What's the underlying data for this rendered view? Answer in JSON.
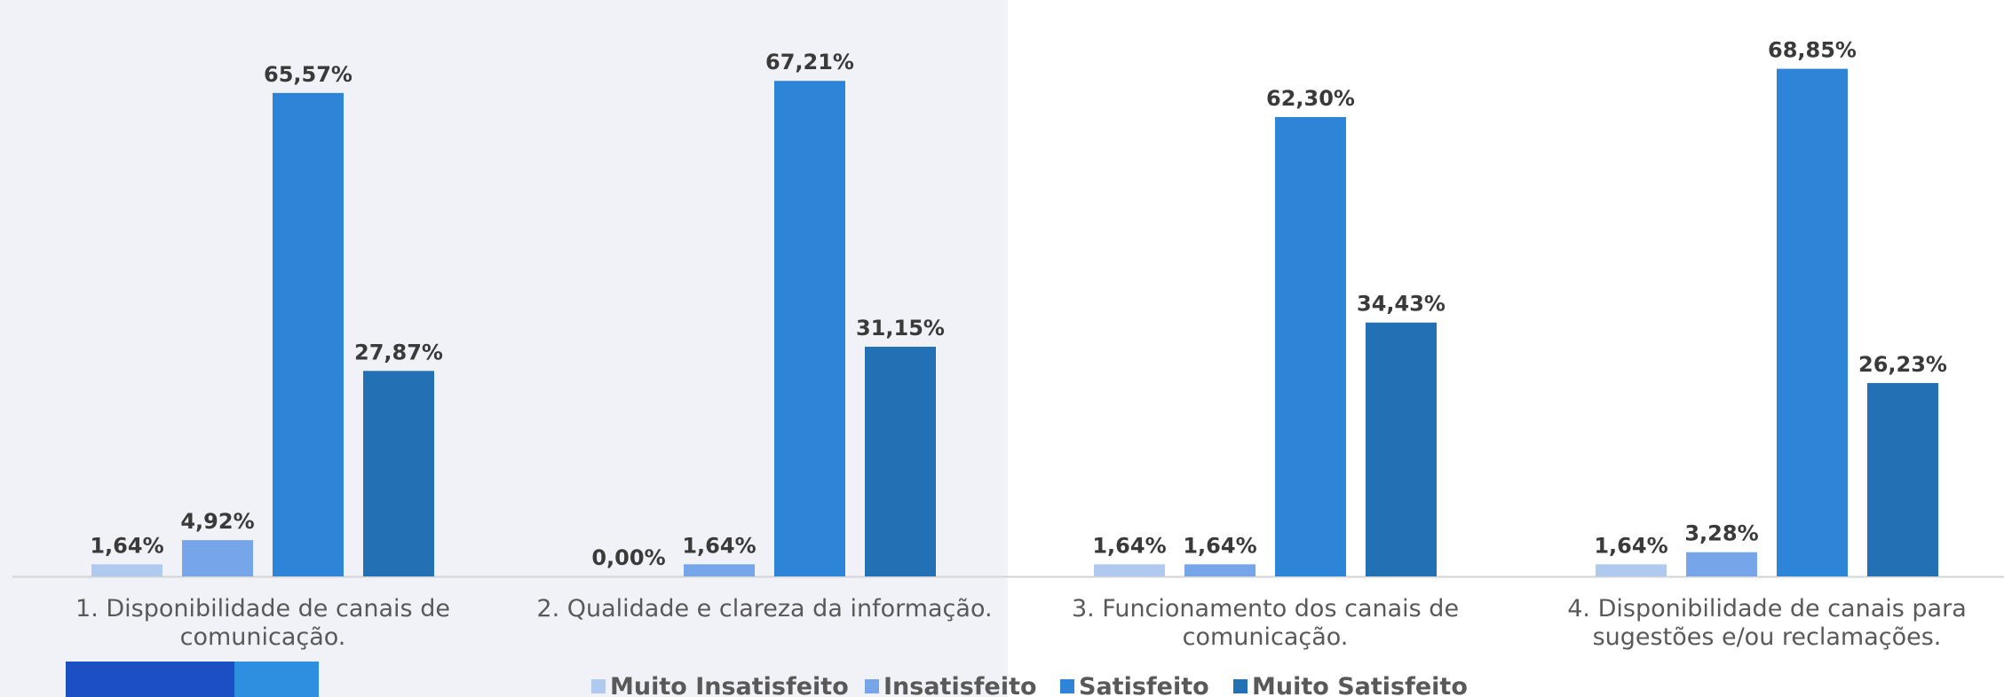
{
  "chart_data": {
    "type": "bar",
    "title": "",
    "xlabel": "",
    "ylabel": "",
    "ylim": [
      0,
      70
    ],
    "grid": false,
    "legend_position": "bottom",
    "colors": [
      "#b0c9ee",
      "#76a5e9",
      "#2e84d6",
      "#2370b4"
    ],
    "categories": [
      [
        "1. Disponibilidade de canais de",
        "comunicação."
      ],
      [
        "2. Qualidade e clareza da informação."
      ],
      [
        "3. Funcionamento dos canais de",
        "comunicação."
      ],
      [
        "4. Disponibilidade de canais para",
        "sugestões e/ou reclamações."
      ]
    ],
    "series": [
      {
        "name": "Muito Insatisfeito",
        "values": [
          1.64,
          0.0,
          1.64,
          1.64
        ],
        "labels": [
          "1,64%",
          "0,00%",
          "1,64%",
          "1,64%"
        ]
      },
      {
        "name": "Insatisfeito",
        "values": [
          4.92,
          1.64,
          1.64,
          3.28
        ],
        "labels": [
          "4,92%",
          "1,64%",
          "1,64%",
          "3,28%"
        ]
      },
      {
        "name": "Satisfeito",
        "values": [
          65.57,
          67.21,
          62.3,
          68.85
        ],
        "labels": [
          "65,57%",
          "67,21%",
          "62,30%",
          "68,85%"
        ]
      },
      {
        "name": "Muito Satisfeito",
        "values": [
          27.87,
          31.15,
          34.43,
          26.23
        ],
        "labels": [
          "27,87%",
          "31,15%",
          "34,43%",
          "26,23%"
        ]
      }
    ]
  }
}
